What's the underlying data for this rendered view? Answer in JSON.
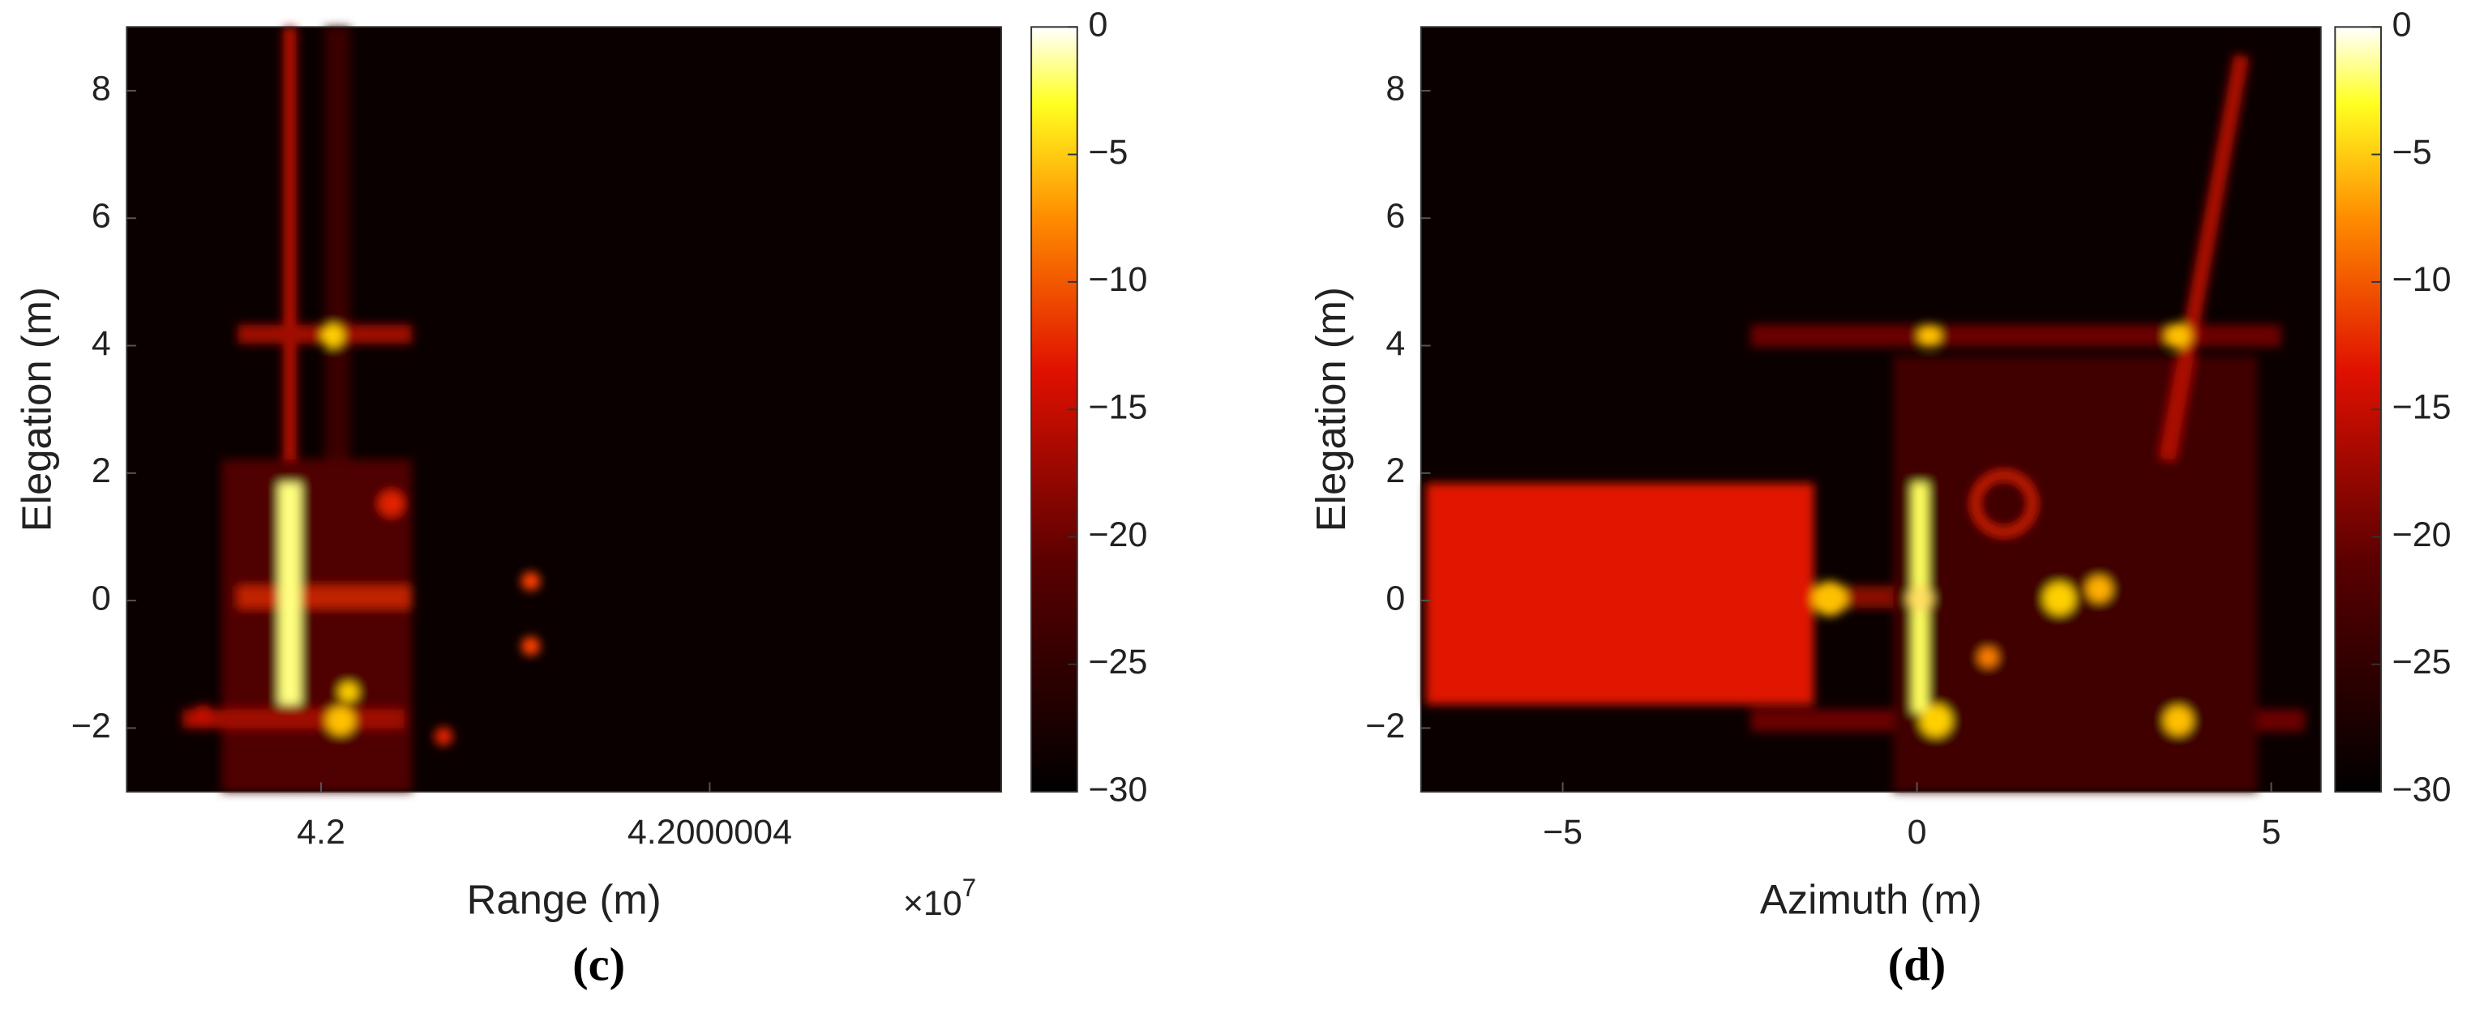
{
  "chart_data": [
    {
      "type": "heatmap",
      "caption": "(c)",
      "xlabel": "Range (m)",
      "ylabel": "Elegation (m)",
      "x_multiplier": "×10",
      "x_multiplier_exponent": "7",
      "xlim": [
        4.1999998,
        4.2000007
      ],
      "xticks": [
        4.2,
        4.2000004
      ],
      "ylim": [
        -3,
        9
      ],
      "yticks": [
        {
          "value": -2,
          "label": "−2"
        },
        0,
        2,
        4,
        6,
        8
      ],
      "clim": [
        -30,
        0
      ],
      "cticks": [
        0,
        {
          "value": -5,
          "label": "−5"
        },
        {
          "value": -10,
          "label": "−10"
        },
        {
          "value": -15,
          "label": "−15"
        },
        {
          "value": -20,
          "label": "−20"
        },
        {
          "value": -25,
          "label": "−25"
        },
        {
          "value": -30,
          "label": "−30"
        }
      ]
    },
    {
      "type": "heatmap",
      "caption": "(d)",
      "xlabel": "Azimuth (m)",
      "ylabel": "Elegation (m)",
      "xlim": [
        -7,
        5.7
      ],
      "xticks": [
        {
          "value": -5,
          "label": "−5"
        },
        0,
        5
      ],
      "ylim": [
        -3,
        9
      ],
      "yticks": [
        {
          "value": -2,
          "label": "−2"
        },
        0,
        2,
        4,
        6,
        8
      ],
      "clim": [
        -30,
        0
      ],
      "cticks": [
        0,
        {
          "value": -5,
          "label": "−5"
        },
        {
          "value": -10,
          "label": "−10"
        },
        {
          "value": -15,
          "label": "−15"
        },
        {
          "value": -20,
          "label": "−20"
        },
        {
          "value": -25,
          "label": "−25"
        },
        {
          "value": -30,
          "label": "−30"
        }
      ]
    }
  ]
}
